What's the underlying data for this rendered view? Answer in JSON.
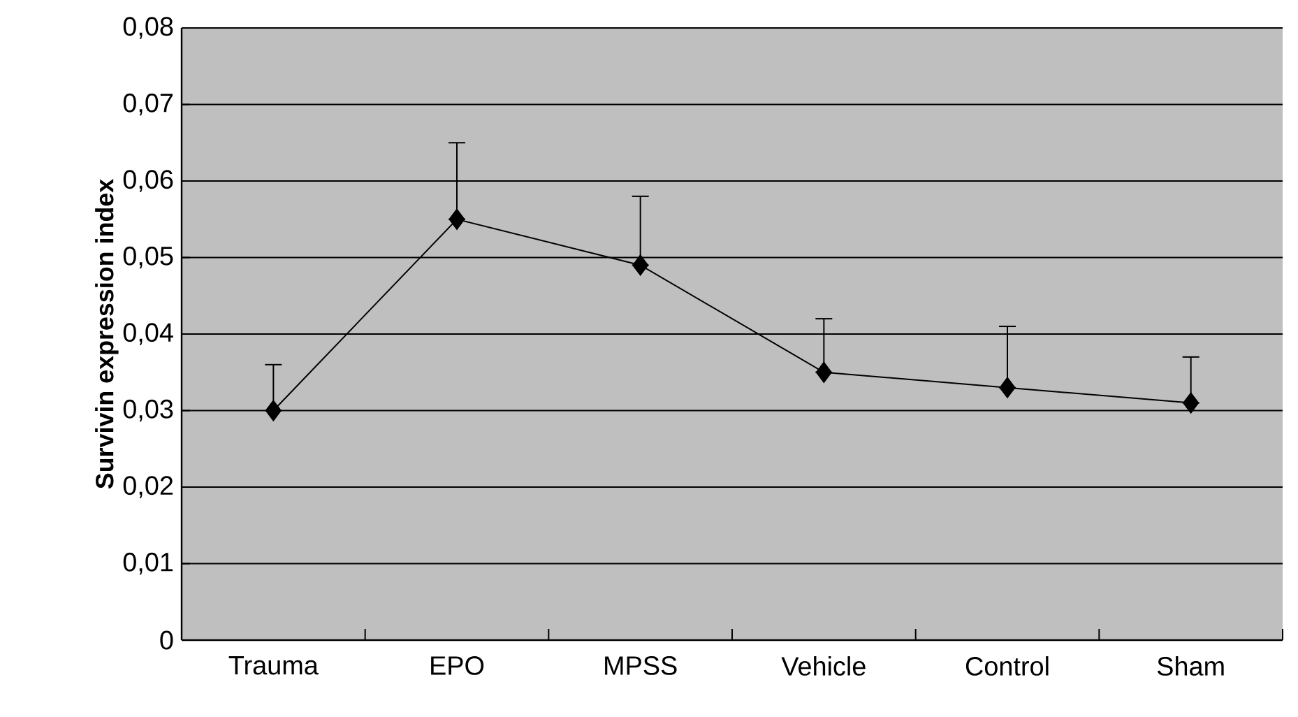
{
  "chart_data": {
    "type": "line",
    "ylabel": "Survivin expression index",
    "categories": [
      "Trauma",
      "EPO",
      "MPSS",
      "Vehicle",
      "Control",
      "Sham"
    ],
    "series": [
      {
        "color": "#000000",
        "values": [
          0.03,
          0.055,
          0.049,
          0.035,
          0.033,
          0.031
        ],
        "errors": [
          [
            0.03,
            0.036
          ],
          [
            0.055,
            0.065
          ],
          [
            0.049,
            0.058
          ],
          [
            0.035,
            0.042
          ],
          [
            0.033,
            0.041
          ],
          [
            0.031,
            0.037
          ]
        ]
      }
    ],
    "ylim": [
      0,
      0.08
    ],
    "yticks": [
      0,
      {
        "value": 0.01,
        "label": "0,01"
      },
      {
        "value": 0.02,
        "label": "0,02"
      },
      {
        "value": 0.03,
        "label": "0,03"
      },
      {
        "value": 0.04,
        "label": "0,04"
      },
      {
        "value": 0.05,
        "label": "0,05"
      },
      {
        "value": 0.06,
        "label": "0,06"
      },
      {
        "value": 0.07,
        "label": "0,07"
      },
      {
        "value": 0.08,
        "label": "0,08"
      }
    ],
    "grid": "y",
    "marker": "diamond",
    "line_style": "solid",
    "legend": false
  }
}
